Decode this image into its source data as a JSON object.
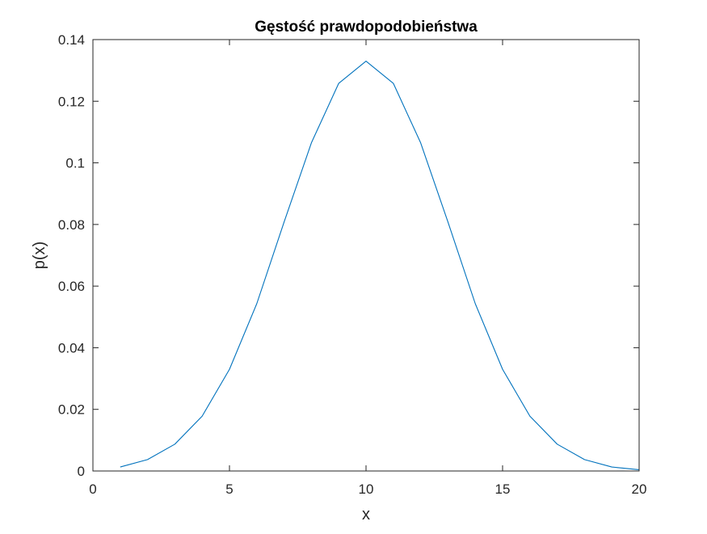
{
  "chart_data": {
    "type": "line",
    "title": "Gęstość prawdopodobieństwa",
    "xlabel": "x",
    "ylabel": "p(x)",
    "xlim": [
      0,
      20
    ],
    "ylim": [
      0,
      0.14
    ],
    "xticks": [
      0,
      5,
      10,
      15,
      20
    ],
    "xtick_labels": [
      "0",
      "5",
      "10",
      "15",
      "20"
    ],
    "yticks": [
      0,
      0.02,
      0.04,
      0.06,
      0.08,
      0.1,
      0.12,
      0.14
    ],
    "ytick_labels": [
      "0",
      "0.02",
      "0.04",
      "0.06",
      "0.08",
      "0.1",
      "0.12",
      "0.14"
    ],
    "grid": false,
    "line_color": "#0072BD",
    "series": [
      {
        "x": [
          1,
          2,
          3,
          4,
          5,
          6,
          7,
          8,
          9,
          10,
          11,
          12,
          13,
          14,
          15,
          16,
          17,
          18,
          19,
          20
        ],
        "values": [
          0.0013,
          0.0037,
          0.0087,
          0.0178,
          0.033,
          0.0543,
          0.0808,
          0.1065,
          0.1258,
          0.133,
          0.1258,
          0.1065,
          0.0808,
          0.0543,
          0.033,
          0.0178,
          0.0087,
          0.0037,
          0.0013,
          0.0004
        ]
      }
    ]
  }
}
